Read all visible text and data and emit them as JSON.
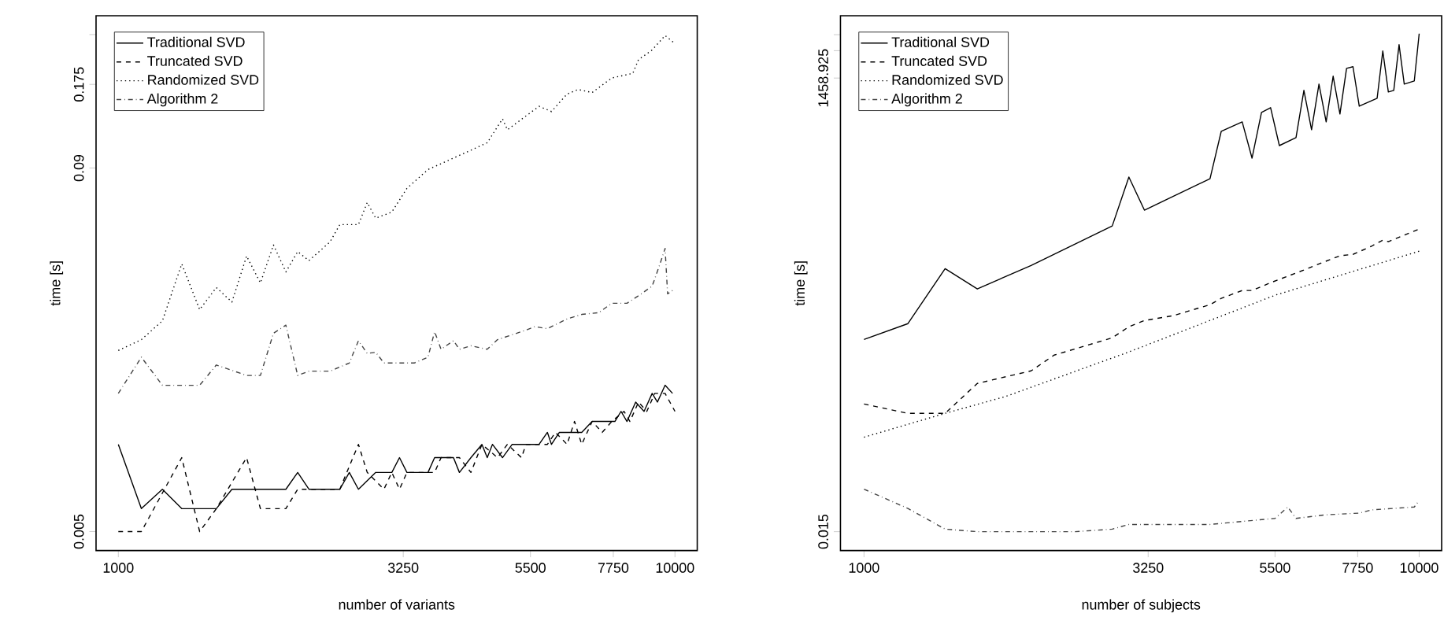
{
  "chart_data": [
    {
      "type": "line",
      "xlabel": "number of variants",
      "ylabel": "time [s]",
      "log": "xy",
      "xlim": [
        912,
        10965
      ],
      "ylim": [
        0.0043,
        0.302
      ],
      "xticks": [
        1000,
        3250,
        5500,
        7750,
        10000
      ],
      "yticks": [
        0.005,
        0.09,
        0.175,
        {
          "value": 0.26,
          "label": null
        }
      ],
      "legend": "top left",
      "series": [
        {
          "name": "Traditional SVD",
          "color": "#000000",
          "line_style": "solid",
          "x": [
            1000,
            1100,
            1200,
            1300,
            1500,
            1600,
            2000,
            2100,
            2200,
            2500,
            2600,
            2700,
            2900,
            3100,
            3200,
            3300,
            3600,
            3700,
            4000,
            4100,
            4300,
            4500,
            4600,
            4700,
            4900,
            5100,
            5700,
            5900,
            6000,
            6200,
            6800,
            7100,
            7800,
            8000,
            8200,
            8500,
            8800,
            9100,
            9300,
            9600,
            9900
          ],
          "values": [
            0.01,
            0.006,
            0.007,
            0.006,
            0.006,
            0.007,
            0.007,
            0.008,
            0.007,
            0.007,
            0.008,
            0.007,
            0.008,
            0.008,
            0.009,
            0.008,
            0.008,
            0.009,
            0.009,
            0.008,
            0.009,
            0.01,
            0.009,
            0.01,
            0.009,
            0.01,
            0.01,
            0.011,
            0.01,
            0.011,
            0.011,
            0.012,
            0.012,
            0.013,
            0.012,
            0.014,
            0.013,
            0.015,
            0.014,
            0.016,
            0.015
          ]
        },
        {
          "name": "Truncated SVD",
          "color": "#000000",
          "line_style": "dashed",
          "x": [
            1000,
            1100,
            1300,
            1400,
            1500,
            1700,
            1800,
            2000,
            2100,
            2500,
            2700,
            2800,
            3000,
            3100,
            3200,
            3300,
            3700,
            3800,
            4100,
            4300,
            4500,
            4800,
            5000,
            5300,
            5400,
            5900,
            6100,
            6400,
            6600,
            6800,
            7100,
            7400,
            7700,
            8100,
            8300,
            8600,
            8900,
            9200,
            9600,
            10000
          ],
          "values": [
            0.005,
            0.005,
            0.009,
            0.005,
            0.006,
            0.009,
            0.006,
            0.006,
            0.007,
            0.007,
            0.01,
            0.008,
            0.007,
            0.008,
            0.007,
            0.008,
            0.008,
            0.009,
            0.009,
            0.008,
            0.01,
            0.009,
            0.01,
            0.009,
            0.01,
            0.01,
            0.011,
            0.01,
            0.012,
            0.01,
            0.012,
            0.011,
            0.012,
            0.013,
            0.012,
            0.014,
            0.013,
            0.015,
            0.015,
            0.013
          ]
        },
        {
          "name": "Randomized SVD",
          "color": "#000000",
          "line_style": "dotted",
          "x": [
            1000,
            1100,
            1200,
            1300,
            1400,
            1500,
            1600,
            1700,
            1800,
            1900,
            2000,
            2100,
            2200,
            2400,
            2500,
            2700,
            2800,
            2900,
            3100,
            3300,
            3600,
            4100,
            4600,
            4900,
            5000,
            5700,
            6000,
            6400,
            6700,
            7100,
            7700,
            8400,
            8600,
            9100,
            9600,
            10000
          ],
          "values": [
            0.0211,
            0.023,
            0.0267,
            0.042,
            0.0292,
            0.0348,
            0.031,
            0.0447,
            0.0361,
            0.0488,
            0.0394,
            0.0463,
            0.0431,
            0.05,
            0.0574,
            0.0574,
            0.0684,
            0.0604,
            0.0634,
            0.0766,
            0.0889,
            0.0995,
            0.11,
            0.133,
            0.122,
            0.147,
            0.141,
            0.162,
            0.168,
            0.164,
            0.184,
            0.191,
            0.213,
            0.23,
            0.258,
            0.242
          ]
        },
        {
          "name": "Algorithm 2",
          "color": "#444444",
          "line_style": "dashdotted",
          "x": [
            1000,
            1100,
            1200,
            1400,
            1500,
            1700,
            1800,
            1900,
            2000,
            2100,
            2200,
            2400,
            2600,
            2700,
            2800,
            2900,
            3000,
            3400,
            3600,
            3700,
            3800,
            4000,
            4100,
            4300,
            4600,
            4800,
            5400,
            5600,
            5900,
            6400,
            6800,
            7300,
            7700,
            8200,
            8700,
            9100,
            9400,
            9600,
            9700,
            9900
          ],
          "values": [
            0.015,
            0.02,
            0.016,
            0.016,
            0.0188,
            0.0173,
            0.0173,
            0.0242,
            0.0258,
            0.0173,
            0.0179,
            0.0179,
            0.0191,
            0.0228,
            0.0206,
            0.0208,
            0.0191,
            0.0191,
            0.02,
            0.0245,
            0.0213,
            0.0228,
            0.0213,
            0.0219,
            0.0213,
            0.023,
            0.0248,
            0.0255,
            0.0251,
            0.0271,
            0.0281,
            0.0285,
            0.0307,
            0.0307,
            0.0331,
            0.0352,
            0.042,
            0.0475,
            0.0331,
            0.034
          ]
        }
      ]
    },
    {
      "type": "line",
      "xlabel": "number of subjects",
      "ylabel": "time [s]",
      "log": "xy",
      "xlim": [
        907,
        10977
      ],
      "ylim": [
        0.0093,
        7070
      ],
      "xticks": [
        1000,
        3250,
        5500,
        7750,
        10000
      ],
      "yticks": [
        0.015,
        1458.925,
        {
          "value": 2917.835,
          "label": null
        },
        {
          "value": 4376.745,
          "label": null
        }
      ],
      "legend": "top left",
      "series": [
        {
          "name": "Traditional SVD",
          "color": "#000000",
          "line_style": "solid",
          "x": [
            1000,
            1200,
            1400,
            1600,
            2000,
            2800,
            3000,
            3200,
            4200,
            4400,
            4800,
            5000,
            5200,
            5400,
            5600,
            6000,
            6200,
            6400,
            6600,
            6800,
            7000,
            7200,
            7400,
            7600,
            7800,
            8400,
            8600,
            8800,
            9000,
            9200,
            9400,
            9800,
            10000
          ],
          "values": [
            1.95,
            2.91,
            11.7,
            7.0,
            12.7,
            34.5,
            119,
            51.5,
            114,
            378,
            481,
            192,
            611,
            689,
            264,
            323,
            1069,
            394,
            1253,
            481,
            1531,
            587,
            1867,
            1945,
            716,
            875,
            2897,
            1026,
            1069,
            3396,
            1253,
            1358,
            4497
          ]
        },
        {
          "name": "Truncated SVD",
          "color": "#000000",
          "line_style": "dashed",
          "x": [
            1000,
            1200,
            1400,
            1600,
            2000,
            2200,
            2800,
            3000,
            3200,
            3600,
            4200,
            4400,
            4800,
            5000,
            5400,
            6200,
            6600,
            7200,
            7600,
            8200,
            8600,
            8800,
            10000
          ],
          "values": [
            0.38,
            0.3,
            0.3,
            0.64,
            0.88,
            1.31,
            2.03,
            2.69,
            3.15,
            3.55,
            4.7,
            5.51,
            6.73,
            6.73,
            8.2,
            11.3,
            13.2,
            16.2,
            16.8,
            20.6,
            24.1,
            23.2,
            31.9
          ]
        },
        {
          "name": "Randomized SVD",
          "color": "#000000",
          "line_style": "dotted",
          "x": [
            1000,
            1400,
            1800,
            3000,
            5500,
            10000
          ],
          "values": [
            0.164,
            0.3,
            0.46,
            1.42,
            5.97,
            18.2
          ]
        },
        {
          "name": "Algorithm 2",
          "color": "#444444",
          "line_style": "dashdotted",
          "x": [
            1000,
            1200,
            1400,
            1600,
            2400,
            2800,
            3000,
            3800,
            4200,
            5500,
            5800,
            6000,
            6800,
            7800,
            8200,
            9800,
            10000
          ],
          "values": [
            0.044,
            0.027,
            0.016,
            0.015,
            0.015,
            0.016,
            0.018,
            0.018,
            0.018,
            0.021,
            0.028,
            0.021,
            0.023,
            0.024,
            0.026,
            0.028,
            0.033
          ]
        }
      ]
    }
  ]
}
